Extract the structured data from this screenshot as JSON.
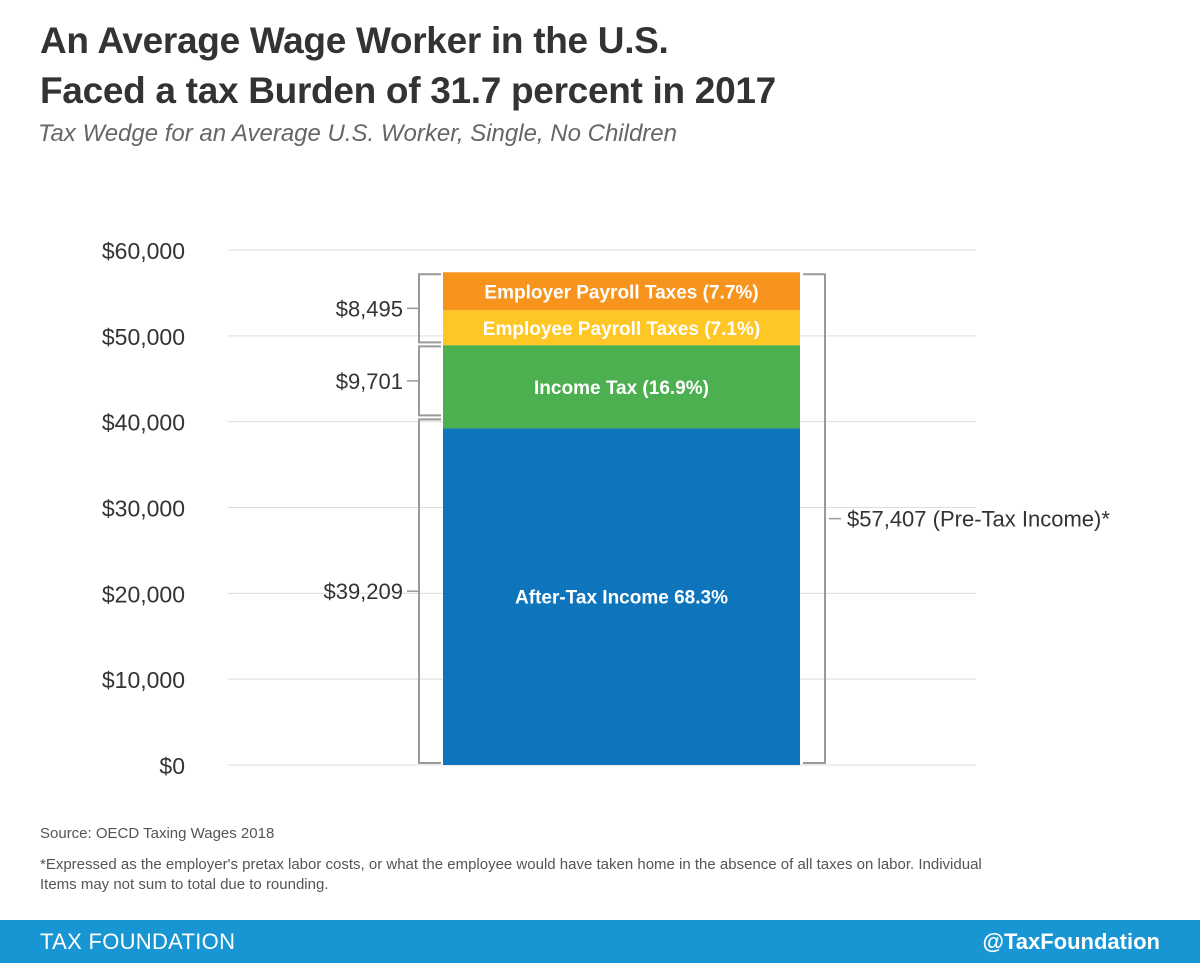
{
  "title_line1": "An Average Wage Worker in the U.S.",
  "title_line2": "Faced a tax Burden of 31.7 percent in 2017",
  "subtitle": "Tax Wedge for an Average U.S. Worker, Single, No Children",
  "source": "Source: OECD Taxing Wages 2018",
  "note": "*Expressed as the employer's pretax labor costs, or what the employee would have taken home in the absence of all taxes on labor. Individual Items may not sum to total due to rounding.",
  "footer": {
    "brand": "TAX FOUNDATION",
    "handle": "@TaxFoundation"
  },
  "chart_data": {
    "type": "bar",
    "stacked": true,
    "ylim": [
      0,
      60000
    ],
    "yticks": [
      0,
      10000,
      20000,
      30000,
      40000,
      50000,
      60000
    ],
    "ytick_labels": [
      "$0",
      "$10,000",
      "$20,000",
      "$30,000",
      "$40,000",
      "$50,000",
      "$60,000"
    ],
    "grid": true,
    "series": [
      {
        "name": "After-Tax Income 68.3%",
        "value": 39209,
        "color": "#0e74bc"
      },
      {
        "name": "Income Tax (16.9%)",
        "value": 9701,
        "color": "#4caf50"
      },
      {
        "name": "Employee Payroll Taxes (7.1%)",
        "value": 4063,
        "color": "#ffc726"
      },
      {
        "name": "Employer Payroll Taxes (7.7%)",
        "value": 4433,
        "color": "#f7941d"
      }
    ],
    "brackets": [
      {
        "label": "$39,209",
        "from": 0,
        "to": 40500,
        "side": "left"
      },
      {
        "label": "$9,701",
        "from": 40500,
        "to": 49000,
        "side": "left"
      },
      {
        "label": "$8,495",
        "from": 49000,
        "to": 57407,
        "side": "left"
      },
      {
        "label": "$57,407 (Pre-Tax Income)*",
        "from": 0,
        "to": 57407,
        "side": "right"
      }
    ]
  }
}
